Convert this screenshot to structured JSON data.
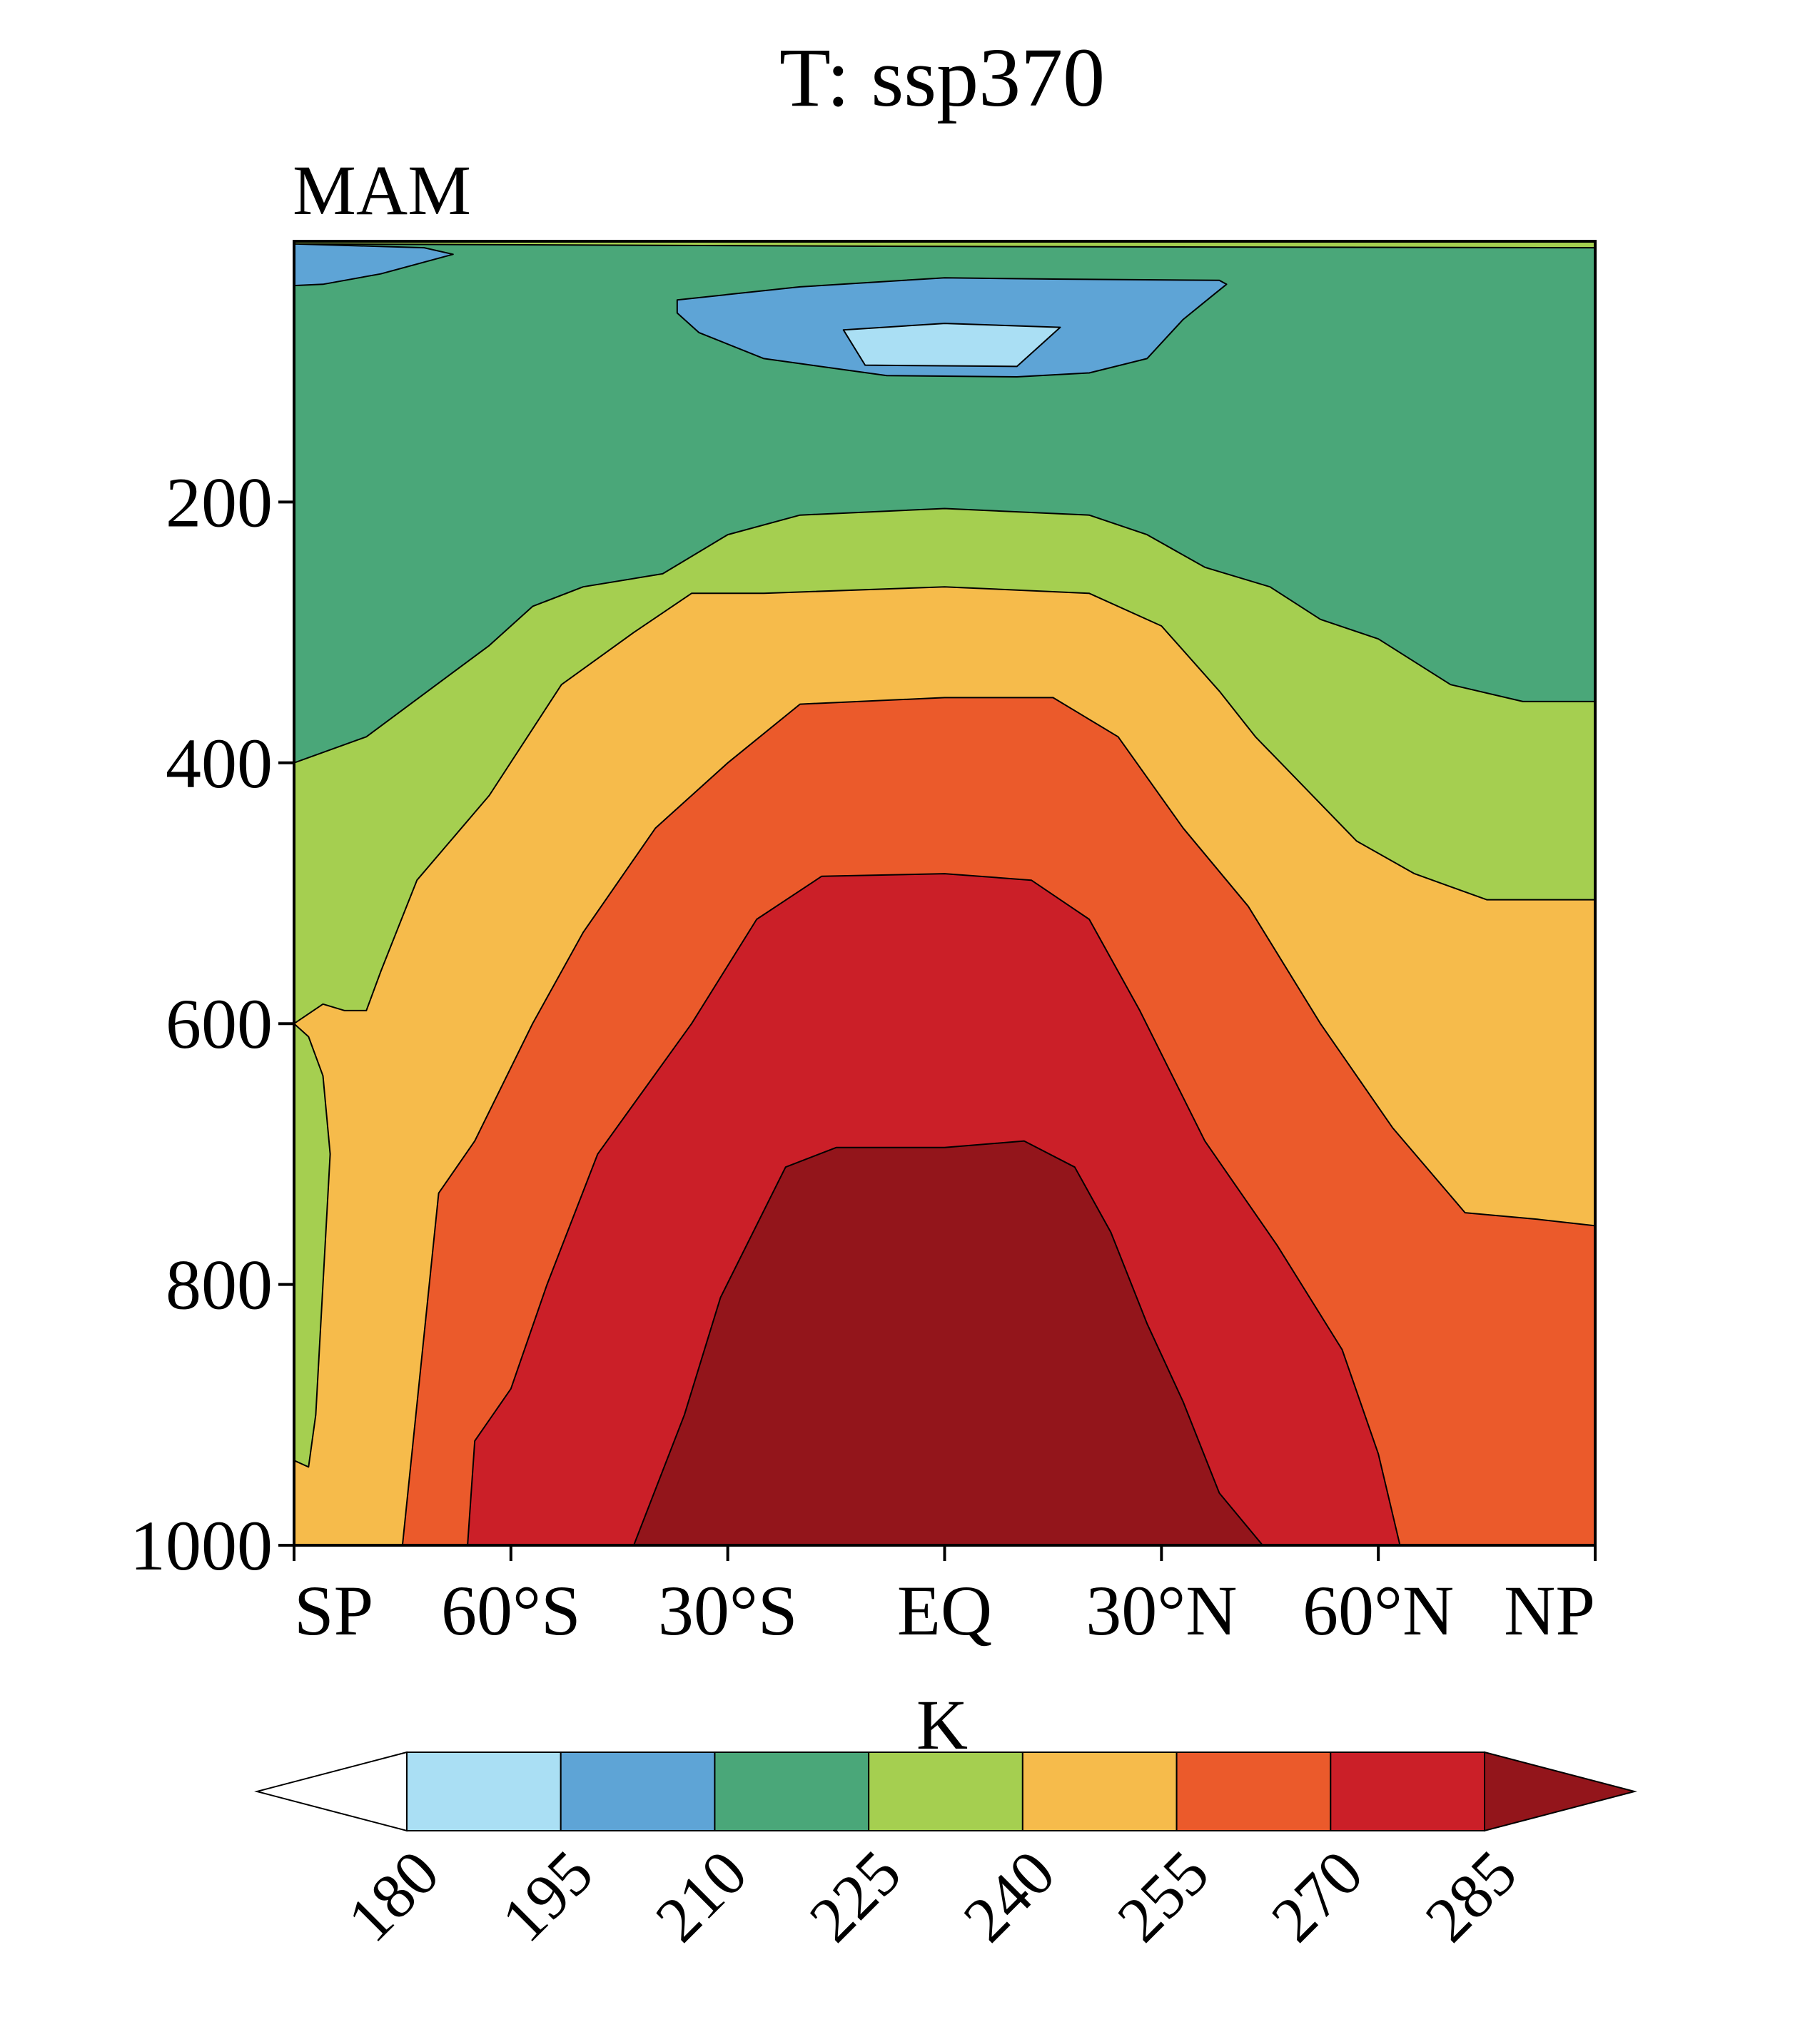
{
  "chart_data": {
    "type": "contour",
    "title": "T: ssp370",
    "subtitle": "MAM",
    "xlabel": "",
    "ylabel": "",
    "x_domain": [
      -90,
      90
    ],
    "y_domain": [
      0,
      1000
    ],
    "y_inverted": true,
    "x_ticks": [
      {
        "value": -90,
        "label": "SP"
      },
      {
        "value": -60,
        "label": "60°S"
      },
      {
        "value": -30,
        "label": "30°S"
      },
      {
        "value": 0,
        "label": "EQ"
      },
      {
        "value": 30,
        "label": "30°N"
      },
      {
        "value": 60,
        "label": "60°N"
      },
      {
        "value": 90,
        "label": "NP"
      }
    ],
    "y_ticks": [
      {
        "value": 200,
        "label": "200"
      },
      {
        "value": 400,
        "label": "400"
      },
      {
        "value": 600,
        "label": "600"
      },
      {
        "value": 800,
        "label": "800"
      },
      {
        "value": 1000,
        "label": "1000"
      }
    ],
    "colorbar": {
      "label": "K",
      "levels": [
        "180",
        "195",
        "210",
        "225",
        "240",
        "255",
        "270",
        "285"
      ],
      "colors": [
        "#ffffff",
        "#aadff4",
        "#5ea4d6",
        "#4aa779",
        "#a5cf50",
        "#f6bb4b",
        "#eb5a2b",
        "#cb1f28",
        "#93151b"
      ]
    },
    "contour_regions": [
      {
        "name": "region-green-background",
        "color_index": 3,
        "points": [
          [
            -90,
            0
          ],
          [
            90,
            0
          ],
          [
            90,
            1000
          ],
          [
            -90,
            1000
          ]
        ]
      },
      {
        "name": "region-lightgreen-top-strip",
        "color_index": 4,
        "points": [
          [
            -90,
            0
          ],
          [
            90,
            0
          ],
          [
            90,
            5
          ],
          [
            0,
            4
          ],
          [
            -90,
            2
          ]
        ]
      },
      {
        "name": "region-blue-sp-upper",
        "color_index": 2,
        "points": [
          [
            -90,
            2
          ],
          [
            -72,
            5
          ],
          [
            -68,
            10
          ],
          [
            -78,
            25
          ],
          [
            -86,
            33
          ],
          [
            -90,
            34
          ]
        ]
      },
      {
        "name": "region-blue-tropical-cold-core",
        "color_index": 2,
        "points": [
          [
            -37,
            45
          ],
          [
            -20,
            35
          ],
          [
            0,
            28
          ],
          [
            15,
            29
          ],
          [
            38,
            30
          ],
          [
            39,
            33
          ],
          [
            37,
            42
          ],
          [
            33,
            60
          ],
          [
            28,
            90
          ],
          [
            20,
            101
          ],
          [
            10,
            104
          ],
          [
            -8,
            103
          ],
          [
            -25,
            90
          ],
          [
            -34,
            70
          ],
          [
            -37,
            55
          ]
        ]
      },
      {
        "name": "region-lightblue-tropopause-core",
        "color_index": 1,
        "points": [
          [
            -14,
            68
          ],
          [
            0,
            63
          ],
          [
            16,
            66
          ],
          [
            10,
            96
          ],
          [
            -11,
            95
          ]
        ]
      },
      {
        "name": "region-lightgreen-main",
        "color_index": 4,
        "points": [
          [
            -90,
            1000
          ],
          [
            -90,
            400
          ],
          [
            -80,
            380
          ],
          [
            -63,
            310
          ],
          [
            -57,
            280
          ],
          [
            -50,
            265
          ],
          [
            -39,
            255
          ],
          [
            -30,
            225
          ],
          [
            -20,
            210
          ],
          [
            0,
            205
          ],
          [
            20,
            210
          ],
          [
            28,
            225
          ],
          [
            36,
            250
          ],
          [
            45,
            265
          ],
          [
            52,
            290
          ],
          [
            60,
            305
          ],
          [
            70,
            340
          ],
          [
            80,
            353
          ],
          [
            90,
            353
          ],
          [
            90,
            1000
          ]
        ]
      },
      {
        "name": "region-yellow-main",
        "color_index": 5,
        "points": [
          [
            -90,
            1000
          ],
          [
            -90,
            600
          ],
          [
            -86,
            585
          ],
          [
            -83,
            590
          ],
          [
            -80,
            590
          ],
          [
            -78,
            560
          ],
          [
            -73,
            490
          ],
          [
            -63,
            425
          ],
          [
            -53,
            340
          ],
          [
            -43,
            300
          ],
          [
            -35,
            270
          ],
          [
            -25,
            270
          ],
          [
            0,
            265
          ],
          [
            20,
            270
          ],
          [
            30,
            295
          ],
          [
            38,
            345
          ],
          [
            43,
            380
          ],
          [
            50,
            420
          ],
          [
            57,
            460
          ],
          [
            65,
            485
          ],
          [
            75,
            505
          ],
          [
            90,
            505
          ],
          [
            90,
            1000
          ]
        ]
      },
      {
        "name": "region-lightgreen-sp-lower",
        "color_index": 4,
        "points": [
          [
            -90,
            600
          ],
          [
            -88,
            610
          ],
          [
            -86,
            640
          ],
          [
            -85,
            700
          ],
          [
            -86,
            800
          ],
          [
            -87,
            900
          ],
          [
            -88,
            940
          ],
          [
            -90,
            935
          ]
        ]
      },
      {
        "name": "region-orange-main",
        "color_index": 6,
        "points": [
          [
            -75,
            1000
          ],
          [
            -70,
            730
          ],
          [
            -65,
            690
          ],
          [
            -57,
            600
          ],
          [
            -50,
            530
          ],
          [
            -40,
            450
          ],
          [
            -30,
            400
          ],
          [
            -20,
            355
          ],
          [
            0,
            350
          ],
          [
            15,
            350
          ],
          [
            24,
            380
          ],
          [
            33,
            450
          ],
          [
            42,
            510
          ],
          [
            52,
            600
          ],
          [
            62,
            680
          ],
          [
            72,
            745
          ],
          [
            82,
            750
          ],
          [
            90,
            755
          ],
          [
            90,
            1000
          ]
        ]
      },
      {
        "name": "region-red-main",
        "color_index": 7,
        "points": [
          [
            -66,
            1000
          ],
          [
            -65,
            920
          ],
          [
            -60,
            880
          ],
          [
            -55,
            800
          ],
          [
            -48,
            700
          ],
          [
            -35,
            600
          ],
          [
            -26,
            520
          ],
          [
            -17,
            487
          ],
          [
            0,
            485
          ],
          [
            12,
            490
          ],
          [
            20,
            520
          ],
          [
            27,
            590
          ],
          [
            36,
            690
          ],
          [
            46,
            770
          ],
          [
            55,
            850
          ],
          [
            60,
            930
          ],
          [
            63,
            1000
          ]
        ]
      },
      {
        "name": "region-darkred-main",
        "color_index": 8,
        "points": [
          [
            -43,
            1000
          ],
          [
            -36,
            900
          ],
          [
            -31,
            810
          ],
          [
            -22,
            710
          ],
          [
            -15,
            695
          ],
          [
            0,
            695
          ],
          [
            11,
            690
          ],
          [
            18,
            710
          ],
          [
            23,
            760
          ],
          [
            28,
            830
          ],
          [
            33,
            890
          ],
          [
            38,
            960
          ],
          [
            44,
            1000
          ]
        ]
      }
    ]
  }
}
